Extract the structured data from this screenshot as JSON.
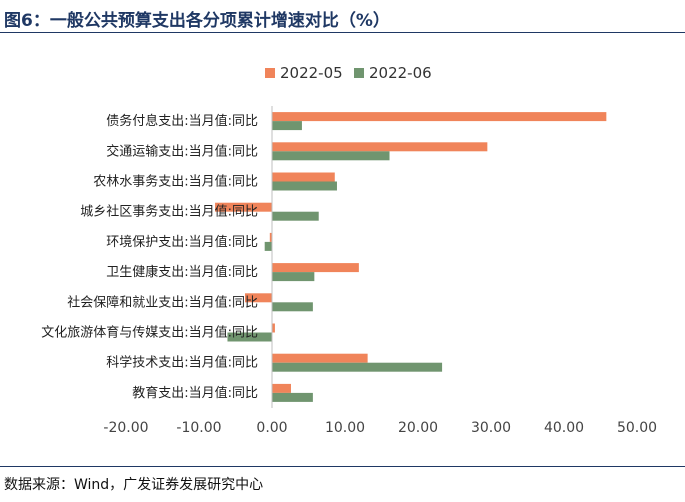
{
  "header": {
    "title": "图6：一般公共预算支出各分项累计增速对比（%）"
  },
  "footer": {
    "source": "数据来源：Wind，广发证券发展研究中心"
  },
  "chart_data": {
    "type": "bar",
    "orientation": "horizontal",
    "categories": [
      "债务付息支出:当月值:同比",
      "交通运输支出:当月值:同比",
      "农林水事务支出:当月值:同比",
      "城乡社区事务支出:当月值:同比",
      "环境保护支出:当月值:同比",
      "卫生健康支出:当月值:同比",
      "社会保障和就业支出:当月值:同比",
      "文化旅游体育与传媒支出:当月值:同比",
      "科学技术支出:当月值:同比",
      "教育支出:当月值:同比"
    ],
    "series": [
      {
        "name": "2022-05",
        "color": "#f0845a",
        "values": [
          45.8,
          29.5,
          8.6,
          -7.8,
          -0.3,
          11.9,
          -3.7,
          0.4,
          13.1,
          2.6
        ]
      },
      {
        "name": "2022-06",
        "color": "#70956f",
        "values": [
          4.1,
          16.1,
          8.9,
          6.4,
          -1.0,
          5.8,
          5.6,
          -6.1,
          23.3,
          5.6
        ]
      }
    ],
    "xlim": [
      -20,
      50
    ],
    "xticks": [
      "-20.00",
      "-10.00",
      "0.00",
      "10.00",
      "20.00",
      "30.00",
      "40.00",
      "50.00"
    ],
    "tick_values": [
      -20,
      -10,
      0,
      10,
      20,
      30,
      40,
      50
    ],
    "legend": "top-center",
    "grid": false
  }
}
